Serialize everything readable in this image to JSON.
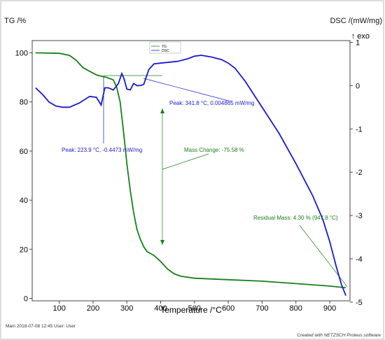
{
  "chart_data": {
    "type": "line",
    "left_axis": {
      "label": "TG /%",
      "ticks": [
        0,
        20,
        40,
        60,
        80,
        100
      ],
      "range": [
        -1,
        105
      ],
      "color": "#1a7f1a"
    },
    "right_axis": {
      "label": "DSC /(mW/mg)",
      "exo_label": "↑ exo",
      "ticks": [
        1,
        0,
        -1,
        -2,
        -3,
        -4,
        -5
      ],
      "range": [
        -4.97,
        1.04
      ],
      "color": "#1a1acc"
    },
    "x_axis": {
      "label": "Temperature /°C",
      "ticks": [
        100,
        200,
        300,
        400,
        500,
        600,
        700,
        800,
        900
      ],
      "range": [
        20,
        960
      ]
    },
    "legend": {
      "entries": [
        "TG",
        "DSC"
      ],
      "placement": "top-center"
    },
    "grid": false,
    "series": [
      {
        "name": "TG",
        "axis": "left",
        "color": "#1a7f1a",
        "points": [
          [
            30,
            100
          ],
          [
            100,
            99.8
          ],
          [
            130,
            99
          ],
          [
            150,
            97
          ],
          [
            170,
            94
          ],
          [
            190,
            92.5
          ],
          [
            210,
            91
          ],
          [
            223.9,
            90.5
          ],
          [
            240,
            90
          ],
          [
            260,
            89
          ],
          [
            270,
            86
          ],
          [
            280,
            80
          ],
          [
            290,
            68
          ],
          [
            300,
            55
          ],
          [
            310,
            44
          ],
          [
            320,
            35
          ],
          [
            330,
            28
          ],
          [
            340,
            24
          ],
          [
            350,
            21
          ],
          [
            360,
            19
          ],
          [
            380,
            17.5
          ],
          [
            400,
            15
          ],
          [
            420,
            12
          ],
          [
            440,
            10
          ],
          [
            460,
            9
          ],
          [
            500,
            8.2
          ],
          [
            600,
            7.6
          ],
          [
            700,
            7
          ],
          [
            800,
            6
          ],
          [
            900,
            5
          ],
          [
            947.8,
            4.3
          ]
        ]
      },
      {
        "name": "DSC",
        "axis": "right",
        "color": "#1a1acc",
        "points": [
          [
            30,
            -0.05
          ],
          [
            50,
            -0.2
          ],
          [
            70,
            -0.38
          ],
          [
            90,
            -0.47
          ],
          [
            110,
            -0.5
          ],
          [
            130,
            -0.5
          ],
          [
            160,
            -0.4
          ],
          [
            190,
            -0.25
          ],
          [
            210,
            -0.27
          ],
          [
            223.9,
            -0.4473
          ],
          [
            235,
            -0.05
          ],
          [
            245,
            -0.05
          ],
          [
            260,
            -0.1
          ],
          [
            275,
            0.05
          ],
          [
            285,
            0.28
          ],
          [
            292,
            0.15
          ],
          [
            300,
            -0.08
          ],
          [
            310,
            -0.1
          ],
          [
            320,
            0.05
          ],
          [
            330,
            0.0
          ],
          [
            341.8,
            0.004865
          ],
          [
            350,
            0.03
          ],
          [
            365,
            0.37
          ],
          [
            380,
            0.5
          ],
          [
            400,
            0.52
          ],
          [
            450,
            0.56
          ],
          [
            480,
            0.62
          ],
          [
            500,
            0.68
          ],
          [
            520,
            0.7
          ],
          [
            550,
            0.66
          ],
          [
            580,
            0.6
          ],
          [
            600,
            0.52
          ],
          [
            620,
            0.4
          ],
          [
            650,
            0.1
          ],
          [
            700,
            -0.5
          ],
          [
            750,
            -1.1
          ],
          [
            800,
            -1.8
          ],
          [
            850,
            -2.55
          ],
          [
            880,
            -3.1
          ],
          [
            900,
            -3.6
          ],
          [
            920,
            -4.2
          ],
          [
            935,
            -4.6
          ],
          [
            947.8,
            -4.85
          ]
        ]
      }
    ],
    "annotations": {
      "peak_1": "Peak: 223.9 °C, -0.4473 mW/mg",
      "peak_2": "Peak: 341.8 °C, 0.004865 mW/mg",
      "mass_change": "Mass Change: -75.58 %",
      "residual_mass": "Residual Mass: 4.30 % (947.8 °C)"
    },
    "footer": {
      "left": "Main    2018-07-08 12:45    User: User",
      "right": "Created with NETZSCH Proteus software"
    }
  }
}
